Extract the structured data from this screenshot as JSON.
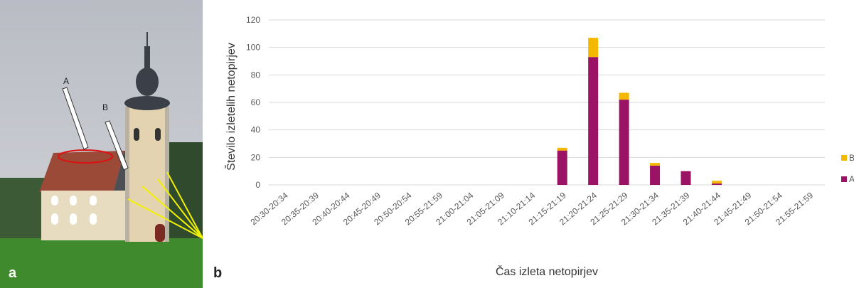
{
  "chart_data": {
    "type": "stacked-bar",
    "y_label": "Število izletelih netopirjev",
    "x_label": "Čas izleta netopirjev",
    "categories": [
      "20:30-20:34",
      "20:35-20:39",
      "20:40-20:44",
      "20:45-20:49",
      "20:50-20:54",
      "20:55-21:59",
      "21:00-21:04",
      "21:05-21:09",
      "21:10-21:14",
      "21:15-21:19",
      "21:20-21:24",
      "21:25-21:29",
      "21:30-21:34",
      "21:35-21:39",
      "21:40-21:44",
      "21:45-21:49",
      "21:50-21:54",
      "21:55-21:59"
    ],
    "series": [
      {
        "name": "A",
        "color": "#9b1364",
        "values": [
          0,
          0,
          0,
          0,
          0,
          0,
          0,
          0,
          0,
          25,
          93,
          62,
          14,
          10,
          1,
          0,
          0,
          0
        ]
      },
      {
        "name": "B",
        "color": "#f5b800",
        "values": [
          0,
          0,
          0,
          0,
          0,
          0,
          0,
          0,
          0,
          2,
          14,
          5,
          2,
          0,
          2,
          0,
          0,
          0
        ]
      }
    ],
    "ylim": [
      0,
      120
    ],
    "yticks": [
      0,
      20,
      40,
      60,
      80,
      100,
      120
    ],
    "grid": true,
    "legend": "right"
  },
  "figure": {
    "panel_labels": [
      "a",
      "b"
    ],
    "photo_labels": [
      "A",
      "B"
    ]
  }
}
